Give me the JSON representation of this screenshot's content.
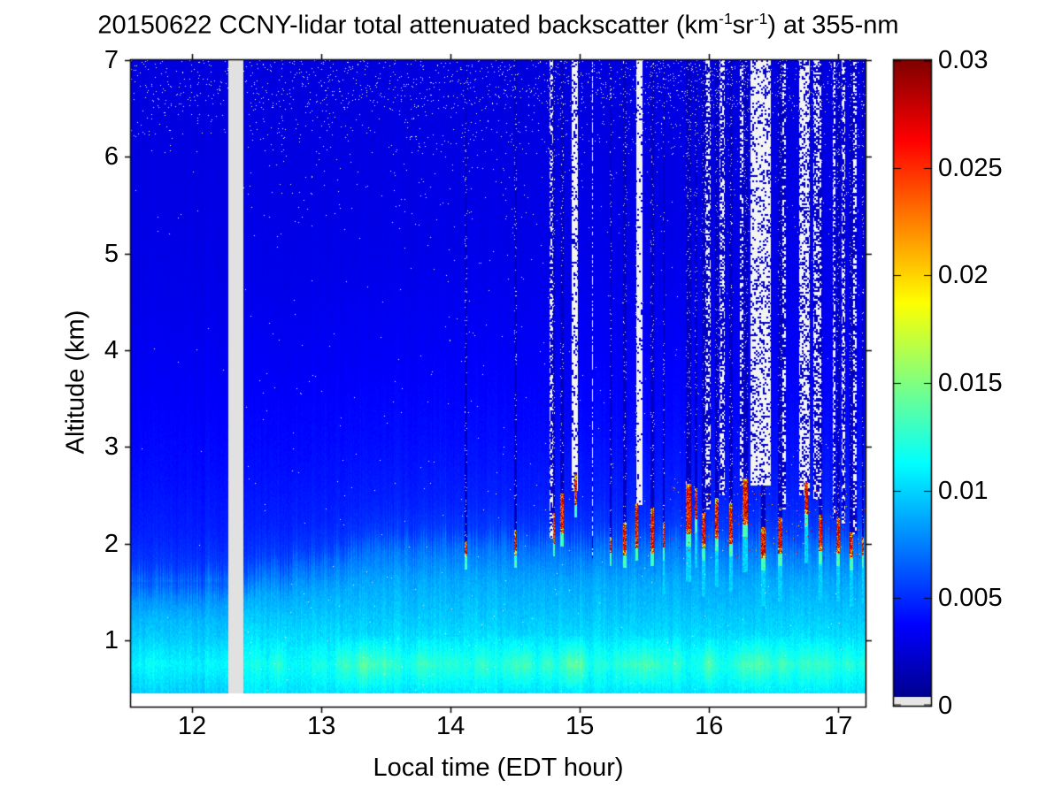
{
  "chart_data": {
    "type": "heatmap",
    "title": "20150622 CCNY-lidar total attenuated backscatter (km-1sr-1) at 355-nm",
    "title_parts": {
      "pre": "20150622 CCNY-lidar total attenuated backscatter (km",
      "sup1": "-1",
      "mid": "sr",
      "sup2": "-1",
      "post": ") at 355-nm"
    },
    "xlabel": "Local time (EDT hour)",
    "ylabel": "Altitude (km)",
    "x_range": [
      11.527,
      17.211
    ],
    "y_range": [
      0.314,
      7.0
    ],
    "x_ticks": [
      "12",
      "13",
      "14",
      "15",
      "16",
      "17"
    ],
    "x_tick_values": [
      12,
      13,
      14,
      15,
      16,
      17
    ],
    "y_ticks": [
      "1",
      "2",
      "3",
      "4",
      "5",
      "6",
      "7"
    ],
    "y_tick_values": [
      1,
      2,
      3,
      4,
      5,
      6,
      7
    ],
    "colorbar": {
      "min": 0,
      "max": 0.03,
      "tick_labels": [
        "0",
        "0.005",
        "0.01",
        "0.015",
        "0.02",
        "0.025",
        "0.03"
      ],
      "tick_values": [
        0,
        0.005,
        0.01,
        0.015,
        0.02,
        0.025,
        0.03
      ],
      "colormap": "jet",
      "under_color": "#e6e6e6"
    },
    "grid": false,
    "data_min_altitude_km": 0.45,
    "data_gap_hours": [
      12.28,
      12.4
    ],
    "background_profile": [
      [
        0.45,
        0.0104
      ],
      [
        0.75,
        0.0113
      ],
      [
        0.95,
        0.0106
      ],
      [
        1.2,
        0.0098
      ],
      [
        1.6,
        0.0087
      ],
      [
        1.9,
        0.0072
      ],
      [
        2.1,
        0.0055
      ],
      [
        2.4,
        0.0047
      ],
      [
        3.0,
        0.0041
      ],
      [
        4.0,
        0.0035
      ],
      [
        5.0,
        0.0031
      ],
      [
        7.0,
        0.0028
      ]
    ],
    "boundary_layer": {
      "pbl_top_before_gap_km": 1.55,
      "pbl_top_after_km": 1.95,
      "plume_jitter_km": 0.16
    },
    "cloud_events": [
      {
        "t": 14.12,
        "w": 0.02,
        "base": 1.86,
        "top": 2.0
      },
      {
        "t": 14.5,
        "w": 0.022,
        "base": 1.88,
        "top": 2.12
      },
      {
        "t": 14.8,
        "w": 0.018,
        "base": 2.0,
        "top": 2.3
      },
      {
        "t": 14.86,
        "w": 0.028,
        "base": 2.1,
        "top": 2.5
      },
      {
        "t": 14.97,
        "w": 0.02,
        "base": 2.4,
        "top": 2.7
      },
      {
        "t": 15.24,
        "w": 0.012,
        "base": 1.9,
        "top": 2.05
      },
      {
        "t": 15.35,
        "w": 0.025,
        "base": 1.88,
        "top": 2.2
      },
      {
        "t": 15.44,
        "w": 0.018,
        "base": 1.95,
        "top": 2.4
      },
      {
        "t": 15.56,
        "w": 0.025,
        "base": 1.9,
        "top": 2.35
      },
      {
        "t": 15.65,
        "w": 0.018,
        "base": 1.95,
        "top": 2.2
      },
      {
        "t": 15.84,
        "w": 0.04,
        "base": 2.1,
        "top": 2.6
      },
      {
        "t": 15.9,
        "w": 0.022,
        "base": 2.25,
        "top": 2.55
      },
      {
        "t": 15.96,
        "w": 0.028,
        "base": 1.95,
        "top": 2.3
      },
      {
        "t": 16.06,
        "w": 0.03,
        "base": 2.05,
        "top": 2.45
      },
      {
        "t": 16.17,
        "w": 0.028,
        "base": 2.0,
        "top": 2.4
      },
      {
        "t": 16.28,
        "w": 0.035,
        "base": 2.2,
        "top": 2.65
      },
      {
        "t": 16.42,
        "w": 0.04,
        "base": 1.85,
        "top": 2.15
      },
      {
        "t": 16.55,
        "w": 0.028,
        "base": 1.9,
        "top": 2.25
      },
      {
        "t": 16.75,
        "w": 0.028,
        "base": 2.3,
        "top": 2.62
      },
      {
        "t": 16.86,
        "w": 0.03,
        "base": 1.92,
        "top": 2.28
      },
      {
        "t": 17.0,
        "w": 0.03,
        "base": 1.9,
        "top": 2.25
      },
      {
        "t": 17.1,
        "w": 0.026,
        "base": 1.85,
        "top": 2.1
      },
      {
        "t": 17.19,
        "w": 0.018,
        "base": 1.88,
        "top": 2.05
      }
    ],
    "speckle_columns": [
      {
        "t": 14.78,
        "w": 0.025,
        "base": 2.05,
        "density": 0.45
      },
      {
        "t": 14.96,
        "w": 0.045,
        "base": 2.55,
        "density": 0.8
      },
      {
        "t": 15.1,
        "w": 0.01,
        "base": 1.85,
        "density": 0.55
      },
      {
        "t": 15.46,
        "w": 0.048,
        "base": 2.4,
        "density": 0.88
      },
      {
        "t": 15.99,
        "w": 0.04,
        "base": 2.35,
        "density": 0.4
      },
      {
        "t": 16.1,
        "w": 0.038,
        "base": 2.5,
        "density": 0.45
      },
      {
        "t": 16.25,
        "w": 0.026,
        "base": 2.6,
        "density": 0.4
      },
      {
        "t": 16.4,
        "w": 0.155,
        "base": 2.6,
        "density": 0.75
      },
      {
        "t": 16.58,
        "w": 0.026,
        "base": 2.35,
        "density": 0.4
      },
      {
        "t": 16.74,
        "w": 0.085,
        "base": 2.5,
        "density": 0.62
      },
      {
        "t": 16.84,
        "w": 0.06,
        "base": 2.45,
        "density": 0.45
      },
      {
        "t": 16.97,
        "w": 0.018,
        "base": 2.25,
        "density": 0.5
      },
      {
        "t": 17.04,
        "w": 0.028,
        "base": 2.2,
        "density": 0.45
      },
      {
        "t": 17.13,
        "w": 0.028,
        "base": 2.1,
        "density": 0.45
      }
    ],
    "scatter_specks": {
      "t_range": [
        15.7,
        17.21
      ],
      "alt_range": [
        1.85,
        2.7
      ],
      "probability": 0.01
    },
    "high_altitude_noise": {
      "alt_start_km": 5.2,
      "dense_above_km": 6.5
    }
  }
}
